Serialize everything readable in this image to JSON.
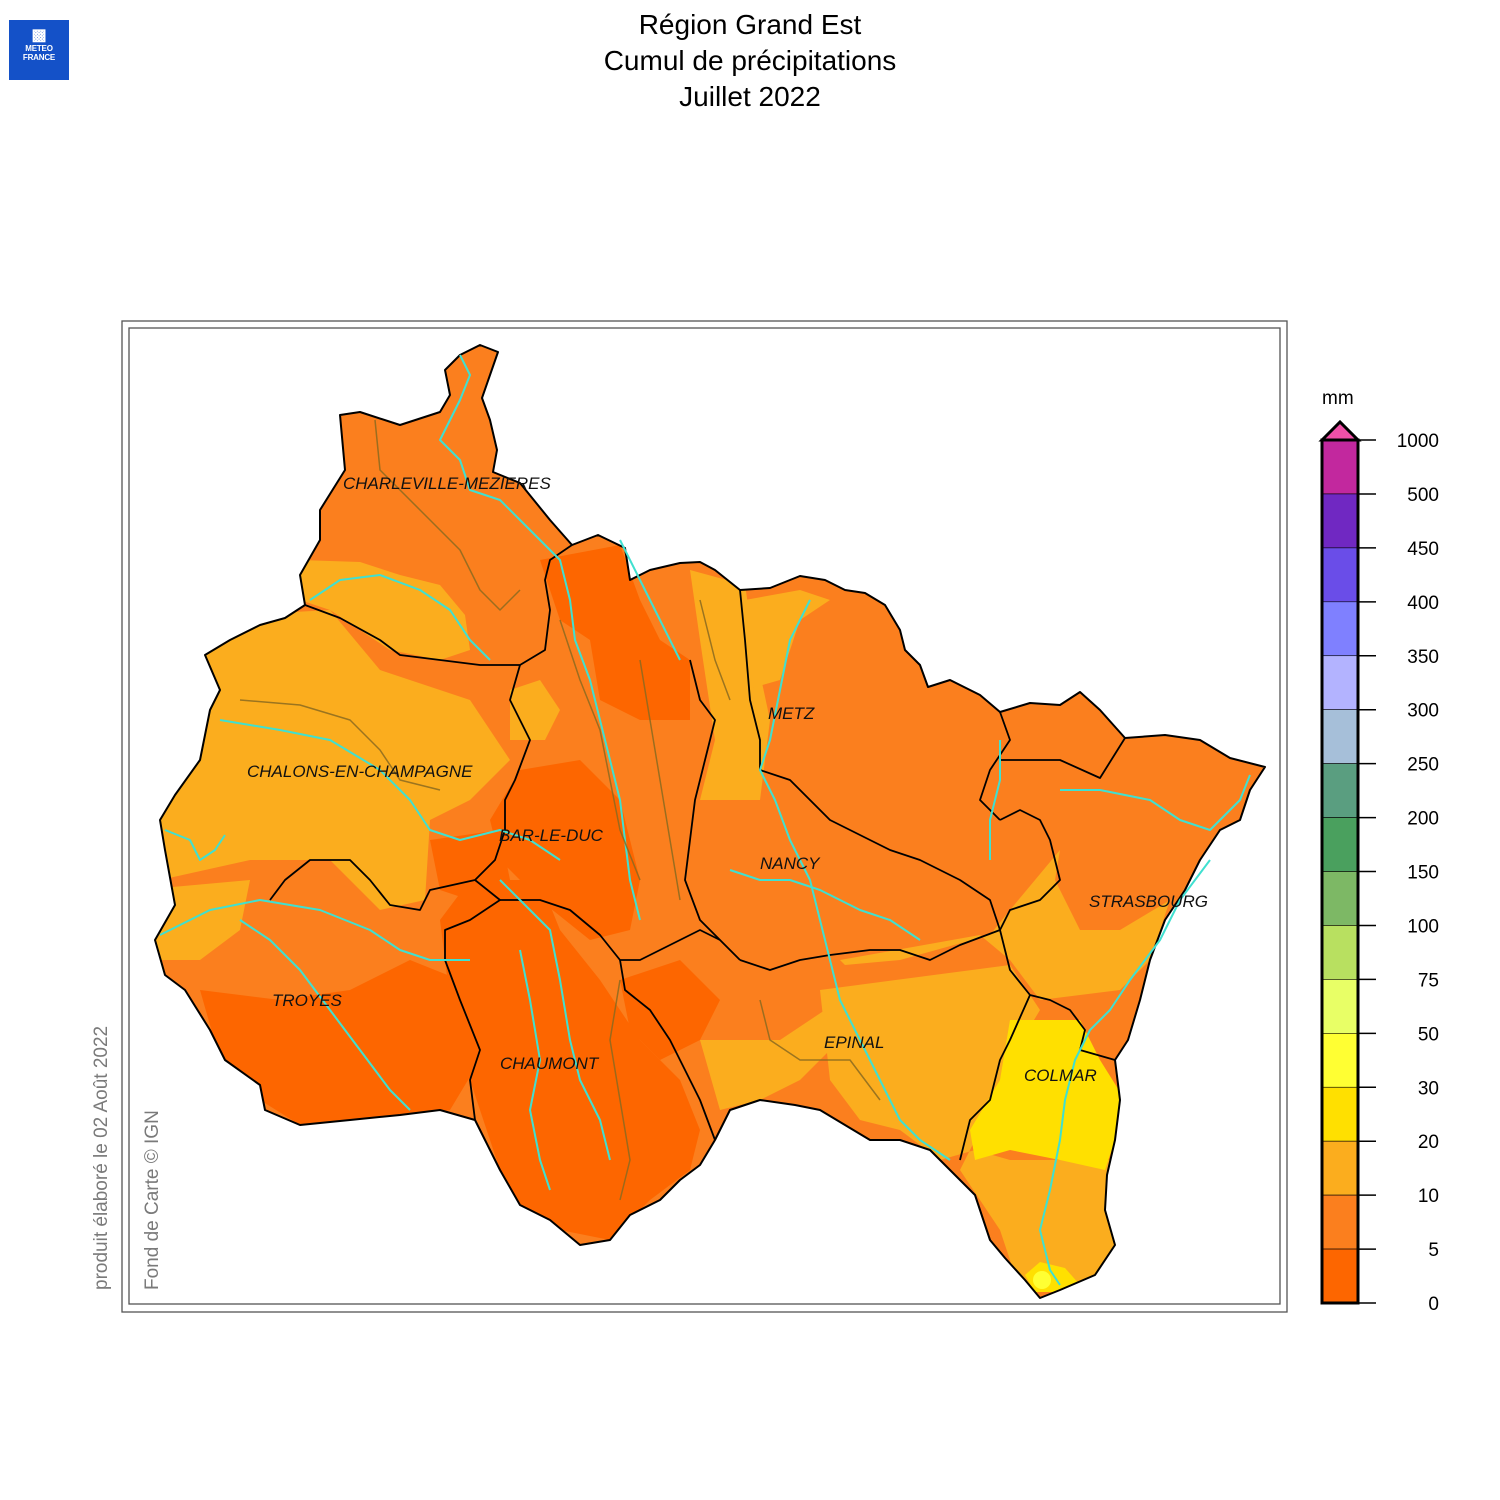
{
  "logo": {
    "line1": "METEO",
    "line2": "FRANCE",
    "color": "#1451c8"
  },
  "title": {
    "line1": "Région Grand Est",
    "line2": "Cumul de précipitations",
    "line3": "Juillet 2022"
  },
  "side_text": {
    "produced": "produit élaboré le 02 Août 2022",
    "credit": "Fond de Carte © IGN"
  },
  "cities": [
    {
      "name": "CHARLEVILLE-MEZIERES"
    },
    {
      "name": "METZ"
    },
    {
      "name": "CHALONS-EN-CHAMPAGNE"
    },
    {
      "name": "BAR-LE-DUC"
    },
    {
      "name": "NANCY"
    },
    {
      "name": "STRASBOURG"
    },
    {
      "name": "TROYES"
    },
    {
      "name": "EPINAL"
    },
    {
      "name": "COLMAR"
    },
    {
      "name": "CHAUMONT"
    }
  ],
  "legend": {
    "unit": "mm",
    "ticks": [
      "1000",
      "500",
      "450",
      "400",
      "350",
      "300",
      "250",
      "200",
      "150",
      "100",
      "75",
      "50",
      "30",
      "20",
      "10",
      "5",
      "0"
    ],
    "colors_top_to_bottom": [
      "#c2289e",
      "#7028c2",
      "#6a4de8",
      "#7f80ff",
      "#b3b3ff",
      "#a6bfd9",
      "#5a9e80",
      "#4aa05e",
      "#7db865",
      "#b8e060",
      "#e8ff66",
      "#ffff33",
      "#ffe000",
      "#fbad1e",
      "#fb7f1e",
      "#fd6600"
    ],
    "overflow_arrow_color": "#f050a8"
  },
  "map_colors": {
    "under5": "#fd6600",
    "5to10": "#fb7f1e",
    "10to20": "#fbad1e",
    "20to30": "#ffe000",
    "30to50": "#ffff33",
    "rivers": "#40e0d0"
  }
}
